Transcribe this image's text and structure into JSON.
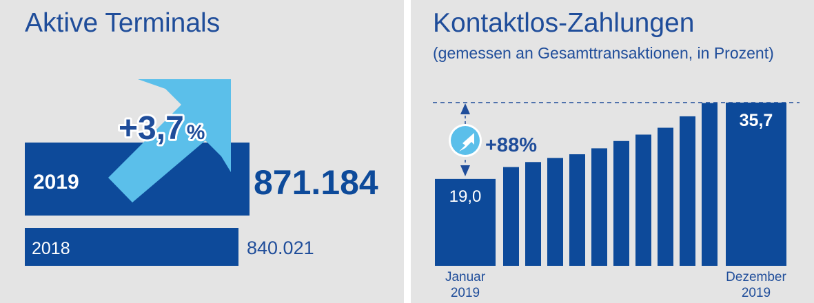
{
  "chart_data": [
    {
      "type": "bar",
      "title": "Aktive Terminals",
      "categories": [
        "2019",
        "2018"
      ],
      "values": [
        871184,
        840021
      ],
      "value_labels": [
        "871.184",
        "840.021"
      ],
      "change_label": "+3,7%",
      "change_number": "+3,7",
      "change_unit": "%"
    },
    {
      "type": "bar",
      "title": "Kontaktlos-Zahlungen",
      "subtitle": "(gemessen an Gesamttransaktionen, in Prozent)",
      "values": [
        19.0,
        21.6,
        22.7,
        23.6,
        24.4,
        25.7,
        27.3,
        28.7,
        30.2,
        32.7,
        35.6,
        35.7
      ],
      "first_label": "19,0",
      "last_label": "35,7",
      "x_labels": {
        "start": "Januar 2019",
        "end": "Dezember 2019"
      },
      "x_label_lines": {
        "start": [
          "Januar",
          "2019"
        ],
        "end": [
          "Dezember",
          "2019"
        ]
      },
      "change_label": "+88%",
      "ylim": [
        0,
        35.7
      ]
    }
  ],
  "colors": {
    "background": "#e4e4e4",
    "bar": "#0d4a9a",
    "arrow": "#5bbfea",
    "arrow_icon_bg": "#ffffff",
    "text_dark": "#1f4d9a"
  }
}
